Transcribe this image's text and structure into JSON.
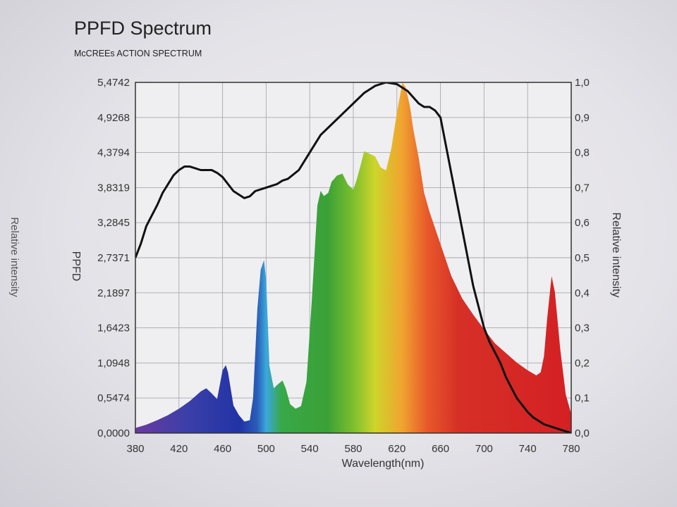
{
  "chart_data": {
    "type": "area",
    "title": "PPFD Spectrum",
    "subtitle": "McCREEs ACTION SPECTRUM",
    "xlabel": "Wavelength(nm)",
    "ylabel_left": "PPFD",
    "ylabel_right": "Relative intensity",
    "outer_left_label": "Relative intensity",
    "xlim": [
      380,
      780
    ],
    "x_ticks": [
      "380",
      "420",
      "460",
      "500",
      "540",
      "580",
      "620",
      "660",
      "700",
      "740",
      "780"
    ],
    "ylim_left": [
      0,
      5.4742
    ],
    "y_ticks_left": [
      "0,0000",
      "0,5474",
      "1,0948",
      "1,6423",
      "2,1897",
      "2,7371",
      "3,2845",
      "3,8319",
      "4,3794",
      "4,9268",
      "5,4742"
    ],
    "ylim_right": [
      0,
      1.0
    ],
    "y_ticks_right": [
      "0,0",
      "0,1",
      "0,2",
      "0,3",
      "0,4",
      "0,5",
      "0,6",
      "0,7",
      "0,8",
      "0,9",
      "1,0"
    ],
    "grid": true,
    "series": [
      {
        "axis": "left",
        "style": "filled-rainbow-area",
        "x": [
          380,
          390,
          400,
          410,
          420,
          430,
          440,
          445,
          450,
          455,
          460,
          463,
          465,
          470,
          475,
          480,
          485,
          488,
          492,
          495,
          498,
          500,
          503,
          507,
          510,
          515,
          518,
          522,
          527,
          532,
          537,
          542,
          547,
          550,
          553,
          557,
          560,
          565,
          570,
          575,
          580,
          583,
          587,
          590,
          595,
          600,
          605,
          610,
          615,
          620,
          625,
          628,
          632,
          635,
          640,
          645,
          650,
          660,
          670,
          680,
          690,
          700,
          710,
          720,
          730,
          740,
          748,
          752,
          755,
          758,
          762,
          765,
          770,
          775,
          780
        ],
        "y": [
          0.08,
          0.13,
          0.2,
          0.28,
          0.38,
          0.5,
          0.65,
          0.7,
          0.62,
          0.53,
          0.98,
          1.06,
          0.95,
          0.43,
          0.28,
          0.18,
          0.2,
          0.55,
          1.95,
          2.55,
          2.7,
          2.4,
          1.05,
          0.7,
          0.75,
          0.82,
          0.7,
          0.45,
          0.38,
          0.42,
          0.8,
          2.1,
          3.55,
          3.78,
          3.7,
          3.75,
          3.92,
          4.02,
          4.05,
          3.88,
          3.8,
          3.95,
          4.2,
          4.4,
          4.36,
          4.32,
          4.15,
          4.1,
          4.45,
          5.0,
          5.47,
          5.4,
          5.1,
          4.75,
          4.3,
          3.75,
          3.45,
          2.95,
          2.45,
          2.1,
          1.85,
          1.62,
          1.4,
          1.25,
          1.1,
          0.98,
          0.9,
          0.95,
          1.2,
          1.8,
          2.45,
          2.2,
          1.3,
          0.6,
          0.3
        ]
      },
      {
        "axis": "right",
        "style": "black-line",
        "name": "McCREEs ACTION SPECTRUM",
        "x": [
          380,
          385,
          390,
          395,
          400,
          405,
          410,
          415,
          420,
          425,
          430,
          440,
          450,
          455,
          460,
          465,
          470,
          475,
          480,
          485,
          490,
          500,
          510,
          515,
          520,
          530,
          540,
          550,
          560,
          570,
          580,
          590,
          600,
          610,
          620,
          630,
          640,
          645,
          650,
          655,
          660,
          665,
          670,
          675,
          680,
          685,
          690,
          695,
          700,
          705,
          710,
          715,
          720,
          725,
          730,
          735,
          740,
          745,
          750,
          755,
          760,
          770,
          780
        ],
        "y": [
          0.5,
          0.54,
          0.59,
          0.62,
          0.65,
          0.685,
          0.71,
          0.735,
          0.75,
          0.76,
          0.76,
          0.75,
          0.75,
          0.742,
          0.73,
          0.71,
          0.69,
          0.68,
          0.67,
          0.675,
          0.69,
          0.7,
          0.71,
          0.72,
          0.725,
          0.75,
          0.8,
          0.85,
          0.88,
          0.91,
          0.94,
          0.97,
          0.99,
          1.0,
          0.995,
          0.975,
          0.94,
          0.93,
          0.93,
          0.92,
          0.9,
          0.82,
          0.74,
          0.66,
          0.58,
          0.5,
          0.42,
          0.36,
          0.3,
          0.26,
          0.23,
          0.2,
          0.16,
          0.13,
          0.1,
          0.08,
          0.06,
          0.045,
          0.035,
          0.025,
          0.02,
          0.01,
          0.0
        ]
      }
    ]
  }
}
